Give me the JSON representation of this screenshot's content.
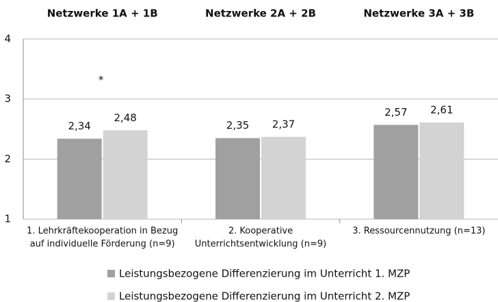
{
  "chart_data": {
    "type": "bar",
    "group_titles": [
      "Netzwerke 1A + 1B",
      "Netzwerke 2A + 2B",
      "Netzwerke 3A + 3B"
    ],
    "annotation": "*",
    "categories": [
      "1. Lehrkräftekooperation in Bezug\nauf individuelle Förderung (n=9)",
      "2. Kooperative\nUnterrichtsentwicklung (n=9)",
      "3. Ressourcennutzung (n=13)"
    ],
    "series": [
      {
        "name": "Leistungsbezogene Differenzierung im Unterricht 1. MZP",
        "color": "#a0a0a0",
        "values": [
          2.34,
          2.35,
          2.57
        ],
        "value_labels": [
          "2,34",
          "2,35",
          "2,57"
        ]
      },
      {
        "name": "Leistungsbezogene Differenzierung im Unterricht 2. MZP",
        "color": "#d3d3d3",
        "values": [
          2.48,
          2.37,
          2.61
        ],
        "value_labels": [
          "2,48",
          "2,37",
          "2,61"
        ]
      }
    ],
    "ylim": [
      1,
      4
    ],
    "yticks": [
      1,
      2,
      3,
      4
    ],
    "grid": true
  }
}
